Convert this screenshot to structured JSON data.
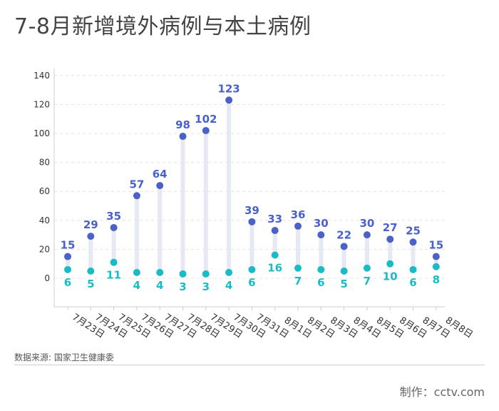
{
  "title": "7-8月新增境外病例与本土病例",
  "source": "数据来源: 国家卫生健康委",
  "credit": "制作：cctv.com",
  "colors": {
    "imported": "#4a62c8",
    "local": "#19bcc6",
    "stem": "#e6e8f2",
    "grid": "#e4e4e4",
    "axis": "#cccccc",
    "tick_text": "#333333"
  },
  "chart_data": {
    "type": "scatter",
    "title": "7-8月新增境外病例与本土病例",
    "categories": [
      "7月23日",
      "7月24日",
      "7月25日",
      "7月26日",
      "7月27日",
      "7月28日",
      "7月29日",
      "7月30日",
      "7月31日",
      "8月1日",
      "8月2日",
      "8月3日",
      "8月4日",
      "8月5日",
      "8月6日",
      "8月7日",
      "8月8日"
    ],
    "series": [
      {
        "values": [
          15,
          29,
          35,
          57,
          64,
          98,
          102,
          123,
          39,
          33,
          36,
          30,
          22,
          30,
          27,
          25,
          15
        ]
      },
      {
        "values": [
          6,
          5,
          11,
          4,
          4,
          3,
          3,
          4,
          6,
          16,
          7,
          6,
          5,
          7,
          10,
          6,
          8
        ]
      }
    ],
    "ylim": [
      -20,
      140
    ],
    "yticks": [
      0,
      20,
      40,
      60,
      80,
      100,
      120,
      140
    ],
    "grid": true
  }
}
